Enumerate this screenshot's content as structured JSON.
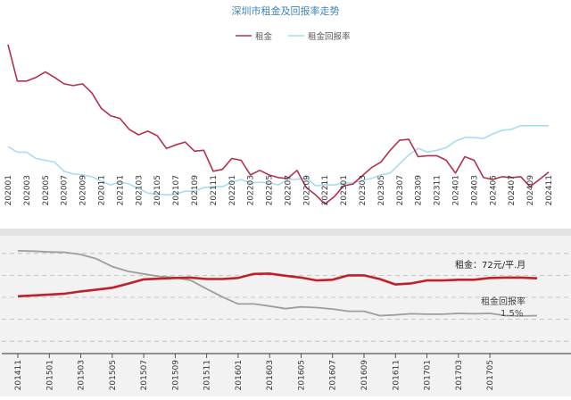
{
  "chart_data": [
    {
      "type": "line",
      "title": "深圳市租金及回报率走势",
      "legend": {
        "placement": "top-center"
      },
      "x": [
        "202001",
        "202002",
        "202003",
        "202004",
        "202005",
        "202006",
        "202007",
        "202008",
        "202009",
        "202010",
        "202011",
        "202012",
        "202101",
        "202102",
        "202103",
        "202104",
        "202105",
        "202106",
        "202107",
        "202108",
        "202109",
        "202110",
        "202111",
        "202112",
        "202201",
        "202202",
        "202203",
        "202204",
        "202205",
        "202206",
        "202207",
        "202208",
        "202209",
        "202210",
        "202211",
        "202212",
        "202301",
        "202302",
        "202303",
        "202304",
        "202305",
        "202306",
        "202307",
        "202308",
        "202309",
        "202310",
        "202311",
        "202312",
        "202401",
        "202402",
        "202403",
        "202404",
        "202405",
        "202406",
        "202407",
        "202408",
        "202409",
        "202410",
        "202411"
      ],
      "x_tick_labels": [
        "202001",
        "202003",
        "202005",
        "202007",
        "202009",
        "202011",
        "202101",
        "202103",
        "202105",
        "202107",
        "202109",
        "202111",
        "202201",
        "202203",
        "202205",
        "202207",
        "202209",
        "202211",
        "202301",
        "202303",
        "202305",
        "202307",
        "202309",
        "202311",
        "202401",
        "202403",
        "202405",
        "202407",
        "202409",
        "202411"
      ],
      "series": [
        {
          "name": "租金",
          "color": "#b5304c",
          "values": [
            90,
            86,
            86,
            86.4,
            87,
            86.4,
            85.7,
            85.5,
            85.7,
            84.7,
            83,
            82.2,
            81.9,
            80.7,
            80.1,
            80.5,
            80,
            78.6,
            79,
            79.3,
            78.3,
            78.4,
            76.1,
            76.3,
            77.5,
            77.3,
            75.7,
            76.2,
            75.7,
            75.4,
            75.3,
            76.2,
            74.3,
            73.5,
            72.5,
            73.3,
            74.5,
            74.7,
            75.6,
            76.5,
            77.1,
            78.4,
            79.5,
            79.6,
            77.7,
            77.8,
            77.8,
            77.3,
            75.9,
            77.7,
            77.3,
            75.4,
            75.2,
            75.5,
            75.4,
            75.5,
            74.4,
            75.2,
            76
          ]
        },
        {
          "name": "租金回报率",
          "color": "#a8dcf0",
          "values": [
            78.8,
            78.2,
            78.2,
            77.5,
            77.3,
            77.1,
            76.1,
            75.8,
            75.7,
            75.5,
            75,
            74.6,
            74.9,
            74.7,
            74.2,
            73.7,
            73.6,
            73.5,
            73.6,
            73.9,
            73.9,
            74.3,
            74.4,
            74.4,
            74.9,
            75.2,
            74.8,
            74.9,
            74.8,
            74.6,
            75.2,
            75.2,
            75.4,
            74.5,
            74.6,
            74.6,
            74.8,
            74.8,
            75.1,
            75.3,
            75.7,
            75.9,
            76.9,
            77.9,
            78.6,
            78.2,
            78.4,
            78.7,
            79.4,
            79.8,
            79.8,
            79.7,
            80.2,
            80.6,
            80.7,
            81.1,
            81.1,
            81.1,
            81.1
          ]
        }
      ],
      "grid": false
    },
    {
      "type": "line",
      "x": [
        "201411",
        "201412",
        "201501",
        "201502",
        "201503",
        "201504",
        "201505",
        "201506",
        "201507",
        "201508",
        "201509",
        "201510",
        "201511",
        "201512",
        "201601",
        "201602",
        "201603",
        "201604",
        "201605",
        "201606",
        "201607",
        "201608",
        "201609",
        "201610",
        "201611",
        "201612",
        "201701",
        "201702",
        "201703",
        "201704",
        "201705",
        "201706",
        "201707",
        "201708"
      ],
      "x_tick_labels": [
        "201411",
        "201501",
        "201503",
        "201505",
        "201507",
        "201509",
        "201511",
        "201601",
        "201603",
        "201605",
        "201607",
        "201609",
        "201611",
        "201701",
        "201703",
        "201705"
      ],
      "series": [
        {
          "color": "#c0202a",
          "values": [
            0.15,
            0.25,
            0.38,
            0.5,
            0.8,
            1.05,
            1.3,
            1.85,
            2.45,
            2.55,
            2.65,
            2.7,
            2.5,
            2.5,
            2.65,
            3.2,
            3.25,
            2.95,
            2.7,
            2.3,
            2.4,
            3.0,
            3.0,
            2.5,
            1.75,
            1.9,
            2.3,
            2.3,
            2.4,
            2.4,
            2.65,
            2.7,
            2.7,
            2.6
          ]
        },
        {
          "color": "#9e9e9e",
          "values": [
            6.35,
            6.3,
            6.2,
            6.15,
            5.85,
            5.25,
            4.2,
            3.55,
            3.2,
            2.85,
            2.7,
            2.3,
            1.15,
            0.05,
            -0.9,
            -0.9,
            -1.2,
            -1.55,
            -1.3,
            -1.4,
            -1.6,
            -1.9,
            -1.9,
            -2.5,
            -2.4,
            -2.25,
            -2.3,
            -2.3,
            -2.2,
            -2.25,
            -2.2,
            -2.5,
            -2.55,
            -2.5
          ]
        }
      ],
      "annotations": [
        {
          "text": "租金：72元/平.月"
        },
        {
          "text": "租金回报率"
        },
        {
          "text": "1.5%"
        }
      ],
      "grid": true
    }
  ]
}
